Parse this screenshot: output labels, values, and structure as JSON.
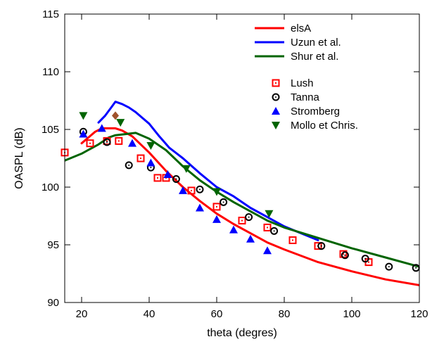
{
  "chart_data": {
    "type": "line",
    "title": "",
    "xlabel": "theta (degres)",
    "ylabel": "OASPL (dB)",
    "xlim": [
      15,
      120
    ],
    "ylim": [
      90,
      115
    ],
    "xticks": [
      20,
      40,
      60,
      80,
      100,
      120
    ],
    "yticks": [
      90,
      95,
      100,
      105,
      110,
      115
    ],
    "grid": false,
    "legend_position": "top-right",
    "line_series": [
      {
        "name": "elsA",
        "color": "#ff0000",
        "x": [
          20,
          22,
          24,
          26,
          28,
          30,
          32,
          35,
          40,
          45,
          50,
          55,
          60,
          65,
          70,
          75,
          80,
          90,
          100,
          110,
          120
        ],
        "y": [
          103.8,
          104.3,
          104.8,
          105.1,
          105.1,
          105.1,
          104.9,
          104.4,
          103.0,
          101.4,
          100.0,
          98.8,
          97.7,
          96.8,
          96.0,
          95.2,
          94.6,
          93.5,
          92.7,
          92.0,
          91.5
        ]
      },
      {
        "name": "Uzun et al.",
        "color": "#0000ff",
        "x": [
          25,
          27,
          29,
          30,
          32,
          34,
          36,
          38,
          40,
          43,
          46,
          50,
          55,
          60,
          65,
          70,
          75,
          80,
          85,
          90
        ],
        "y": [
          105.6,
          106.2,
          107.0,
          107.4,
          107.2,
          106.9,
          106.5,
          106.0,
          105.5,
          104.4,
          103.4,
          102.5,
          101.2,
          100.0,
          99.2,
          98.2,
          97.4,
          96.6,
          96.0,
          95.4
        ]
      },
      {
        "name": "Shur et al.",
        "color": "#006400",
        "x": [
          15,
          20,
          25,
          28,
          30,
          33,
          36,
          40,
          45,
          50,
          55,
          60,
          65,
          70,
          75,
          80,
          90,
          100,
          110,
          120
        ],
        "y": [
          102.3,
          102.9,
          103.7,
          104.3,
          104.5,
          104.6,
          104.7,
          104.2,
          103.2,
          101.8,
          100.6,
          99.6,
          98.7,
          97.9,
          97.1,
          96.5,
          95.6,
          94.7,
          93.9,
          93.1
        ]
      }
    ],
    "marker_series": [
      {
        "name": "Lush",
        "marker": "square",
        "color": "#ff0000",
        "x": [
          15,
          22.5,
          27.5,
          31,
          37.5,
          42.5,
          45,
          52.5,
          60,
          67.5,
          75,
          82.5,
          90,
          97.5,
          105
        ],
        "y": [
          103.0,
          103.8,
          104.0,
          104.0,
          102.5,
          100.8,
          100.8,
          99.7,
          98.3,
          97.1,
          96.5,
          95.4,
          94.9,
          94.2,
          93.5
        ]
      },
      {
        "name": "Tanna",
        "marker": "circle",
        "color": "#000000",
        "x": [
          20.5,
          27.5,
          34,
          40.5,
          48,
          55,
          62,
          69.5,
          77,
          91,
          98,
          104,
          111,
          119
        ],
        "y": [
          104.8,
          103.9,
          101.9,
          101.7,
          100.7,
          99.8,
          98.7,
          97.4,
          96.2,
          94.9,
          94.1,
          93.8,
          93.1,
          93.0
        ]
      },
      {
        "name": "Stromberg",
        "marker": "triangle-up",
        "color": "#0000ff",
        "x": [
          20.5,
          26,
          35,
          40.5,
          45.5,
          50,
          55,
          60,
          65,
          70,
          75
        ],
        "y": [
          104.6,
          105.1,
          103.8,
          102.1,
          101.1,
          99.7,
          98.2,
          97.2,
          96.3,
          95.5,
          94.5
        ]
      },
      {
        "name": "Mollo et Chris.",
        "marker": "triangle-down",
        "color": "#006400",
        "x": [
          20.5,
          31.5,
          40.5,
          51,
          60,
          75.5
        ],
        "y": [
          106.2,
          105.6,
          103.6,
          101.6,
          99.6,
          97.7
        ]
      }
    ],
    "extra_points": [
      {
        "marker": "diamond",
        "color": "#a0522d",
        "x": 30,
        "y": 106.2
      }
    ]
  }
}
